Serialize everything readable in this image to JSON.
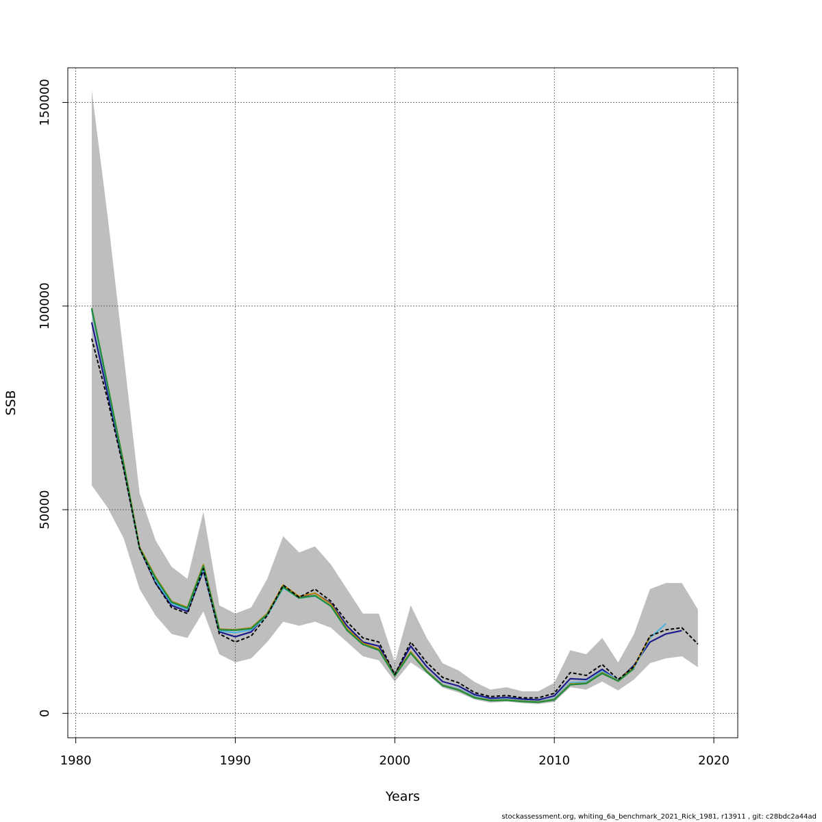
{
  "chart_data": {
    "type": "line",
    "xlabel": "Years",
    "ylabel": "SSB",
    "xlim": [
      1979.5,
      2021.5
    ],
    "ylim": [
      -6000,
      158500
    ],
    "xticks": [
      1980,
      1990,
      2000,
      2010,
      2020
    ],
    "yticks": [
      0,
      50000,
      100000,
      150000
    ],
    "grid": true,
    "band": {
      "x": [
        1981,
        1982,
        1983,
        1984,
        1985,
        1986,
        1987,
        1988,
        1989,
        1990,
        1991,
        1992,
        1993,
        1994,
        1995,
        1996,
        1997,
        1998,
        1999,
        2000,
        2001,
        2002,
        2003,
        2004,
        2005,
        2006,
        2007,
        2008,
        2009,
        2010,
        2011,
        2012,
        2013,
        2014,
        2015,
        2016,
        2017,
        2018,
        2019
      ],
      "upper": [
        153000,
        122000,
        88000,
        54000,
        42500,
        36000,
        33000,
        49500,
        26500,
        24500,
        26000,
        33000,
        43500,
        39500,
        41000,
        36500,
        30500,
        24500,
        24500,
        12500,
        26500,
        18500,
        12300,
        10500,
        7700,
        5800,
        6400,
        5400,
        5400,
        7500,
        15500,
        14500,
        18500,
        12500,
        19500,
        30500,
        32000,
        32000,
        25500
      ],
      "lower": [
        56000,
        50500,
        43000,
        30500,
        24000,
        19500,
        18500,
        25000,
        14500,
        12500,
        13500,
        17500,
        22500,
        21500,
        22500,
        21000,
        17500,
        14000,
        13000,
        7800,
        12500,
        9800,
        6300,
        5100,
        3400,
        2600,
        2900,
        2500,
        2300,
        2800,
        6400,
        5800,
        7800,
        5600,
        8300,
        12300,
        13500,
        14000,
        11300
      ]
    },
    "series": [
      {
        "color": "#000000",
        "dashed": true,
        "x": [
          1981,
          1982,
          1983,
          1984,
          1985,
          1986,
          1987,
          1988,
          1989,
          1990,
          1991,
          1992,
          1993,
          1994,
          1995,
          1996,
          1997,
          1998,
          1999,
          2000,
          2001,
          2002,
          2003,
          2004,
          2005,
          2006,
          2007,
          2008,
          2009,
          2010,
          2011,
          2012,
          2013,
          2014,
          2015,
          2016,
          2017,
          2018,
          2019
        ],
        "values": [
          92000,
          77000,
          60000,
          40500,
          32000,
          26000,
          24500,
          35500,
          19500,
          17500,
          19000,
          24000,
          31500,
          28500,
          30500,
          27500,
          22500,
          18500,
          17500,
          9500,
          17500,
          12500,
          8800,
          7500,
          5100,
          4100,
          4400,
          3800,
          3800,
          4900,
          10000,
          9300,
          12000,
          8300,
          11500,
          19000,
          20500,
          21000,
          17000
        ]
      },
      {
        "color": "#1a1a8c",
        "dashed": false,
        "x": [
          1981,
          1982,
          1983,
          1984,
          1985,
          1986,
          1987,
          1988,
          1989,
          1990,
          1991,
          1992,
          1993,
          1994,
          1995,
          1996,
          1997,
          1998,
          1999,
          2000,
          2001,
          2002,
          2003,
          2004,
          2005,
          2006,
          2007,
          2008,
          2009,
          2010,
          2011,
          2012,
          2013,
          2014,
          2015,
          2016,
          2017,
          2018
        ],
        "values": [
          96000,
          78500,
          60500,
          40500,
          32000,
          26500,
          25000,
          35000,
          20000,
          18800,
          20000,
          24500,
          31000,
          28500,
          29500,
          27000,
          21500,
          17500,
          16500,
          9500,
          16500,
          11500,
          7800,
          6700,
          4600,
          3700,
          3900,
          3500,
          3300,
          4300,
          8500,
          8300,
          10800,
          8000,
          11800,
          17500,
          19500,
          20300
        ]
      },
      {
        "color": "#4fb3e0",
        "dashed": false,
        "x": [
          1981,
          1982,
          1983,
          1984,
          1985,
          1986,
          1987,
          1988,
          1989,
          1990,
          1991,
          1992,
          1993,
          1994,
          1995,
          1996,
          1997,
          1998,
          1999,
          2000,
          2001,
          2002,
          2003,
          2004,
          2005,
          2006,
          2007,
          2008,
          2009,
          2010,
          2011,
          2012,
          2013,
          2014,
          2015,
          2016,
          2017
        ],
        "values": [
          99000,
          80000,
          61000,
          40500,
          32500,
          27000,
          25500,
          35500,
          20300,
          19800,
          20500,
          24000,
          30800,
          28300,
          28800,
          26300,
          20500,
          17000,
          15800,
          9300,
          15000,
          10500,
          7000,
          6000,
          4100,
          3300,
          3500,
          3100,
          2900,
          3600,
          7500,
          7700,
          10300,
          8200,
          11200,
          18500,
          22000
        ]
      },
      {
        "color": "#b8860b",
        "dashed": false,
        "x": [
          1981,
          1982,
          1983,
          1984,
          1985,
          1986,
          1987,
          1988,
          1989,
          1990,
          1991,
          1992,
          1993,
          1994,
          1995,
          1996,
          1997,
          1998,
          1999,
          2000,
          2001,
          2002,
          2003,
          2004,
          2005,
          2006,
          2007,
          2008,
          2009,
          2010,
          2011,
          2012,
          2013,
          2014,
          2015,
          2016
        ],
        "values": [
          99500,
          80500,
          61500,
          40800,
          33500,
          27500,
          26000,
          36500,
          20700,
          20500,
          21000,
          24500,
          31500,
          28700,
          29500,
          26800,
          20800,
          17200,
          15800,
          9400,
          15100,
          10400,
          6900,
          5800,
          3900,
          3200,
          3300,
          3000,
          2800,
          3400,
          7200,
          7400,
          10000,
          8000,
          11500,
          18800
        ]
      },
      {
        "color": "#1e8c3c",
        "dashed": false,
        "x": [
          1981,
          1982,
          1983,
          1984,
          1985,
          1986,
          1987,
          1988,
          1989,
          1990,
          1991,
          1992,
          1993,
          1994,
          1995,
          1996,
          1997,
          1998,
          1999,
          2000,
          2001,
          2002,
          2003,
          2004,
          2005,
          2006,
          2007,
          2008,
          2009,
          2010,
          2011,
          2012,
          2013,
          2014,
          2015
        ],
        "values": [
          99500,
          80500,
          61200,
          40500,
          33200,
          27300,
          25800,
          36200,
          20500,
          20400,
          20800,
          24300,
          31000,
          28300,
          28900,
          26300,
          20400,
          16900,
          15500,
          9200,
          14800,
          10200,
          6800,
          5700,
          3800,
          3100,
          3200,
          2900,
          2700,
          3300,
          7000,
          7300,
          9800,
          7900,
          11000
        ]
      }
    ]
  },
  "footer": "stockassessment.org, whiting_6a_benchmark_2021_Rick_1981, r13911 , git: c28bdc2a44ad"
}
